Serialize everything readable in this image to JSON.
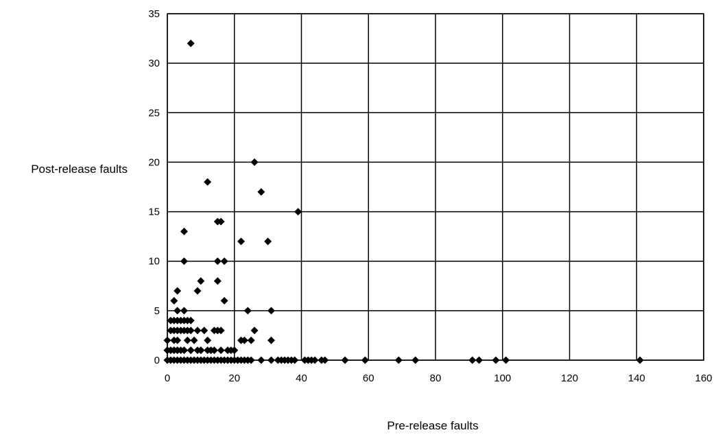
{
  "chart_data": {
    "type": "scatter",
    "title": "",
    "xlabel": "Pre-release faults",
    "ylabel": "Post-release faults",
    "xlim": [
      0,
      160
    ],
    "ylim": [
      0,
      35
    ],
    "xticks": [
      0,
      20,
      40,
      60,
      80,
      100,
      120,
      140,
      160
    ],
    "yticks": [
      0,
      5,
      10,
      15,
      20,
      25,
      30,
      35
    ],
    "grid": true,
    "legend": "none",
    "marker": "diamond",
    "marker_color": "#000000",
    "x": [
      7,
      26,
      12,
      28,
      39,
      15,
      16,
      5,
      22,
      30,
      5,
      15,
      17,
      10,
      15,
      9,
      3,
      2,
      17,
      3,
      24,
      31,
      5,
      1,
      2,
      3,
      4,
      5,
      6,
      7,
      15,
      26,
      1,
      2,
      3,
      4,
      5,
      6,
      7,
      9,
      11,
      14,
      16,
      0,
      2,
      3,
      6,
      8,
      12,
      22,
      23,
      25,
      31,
      0,
      1,
      2,
      3,
      4,
      5,
      7,
      9,
      10,
      12,
      13,
      14,
      19,
      0,
      1,
      2,
      3,
      5,
      7,
      10,
      13,
      16,
      18,
      20,
      0,
      1,
      2,
      3,
      4,
      5,
      6,
      7,
      8,
      9,
      10,
      11,
      12,
      13,
      14,
      15,
      16,
      17,
      18,
      19,
      20,
      21,
      22,
      23,
      24,
      25,
      28,
      31,
      33,
      34,
      35,
      36,
      37,
      38,
      41,
      42,
      43,
      44,
      46,
      47,
      53,
      59,
      69,
      74,
      91,
      93,
      98,
      101,
      141
    ],
    "y": [
      32,
      20,
      18,
      17,
      15,
      14,
      14,
      13,
      12,
      12,
      10,
      10,
      10,
      8,
      8,
      7,
      7,
      6,
      6,
      5,
      5,
      5,
      5,
      4,
      4,
      4,
      4,
      4,
      4,
      4,
      3,
      3,
      3,
      3,
      3,
      3,
      3,
      3,
      3,
      3,
      3,
      3,
      3,
      2,
      2,
      2,
      2,
      2,
      2,
      2,
      2,
      2,
      2,
      1,
      1,
      1,
      1,
      1,
      1,
      1,
      1,
      1,
      1,
      1,
      1,
      1,
      1,
      1,
      1,
      1,
      1,
      1,
      1,
      1,
      1,
      1,
      1,
      0,
      0,
      0,
      0,
      0,
      0,
      0,
      0,
      0,
      0,
      0,
      0,
      0,
      0,
      0,
      0,
      0,
      0,
      0,
      0,
      0,
      0,
      0,
      0,
      0,
      0,
      0,
      0,
      0,
      0,
      0,
      0,
      0,
      0,
      0,
      0,
      0,
      0,
      0,
      0,
      0,
      0,
      0,
      0,
      0,
      0,
      0,
      0,
      0
    ]
  }
}
